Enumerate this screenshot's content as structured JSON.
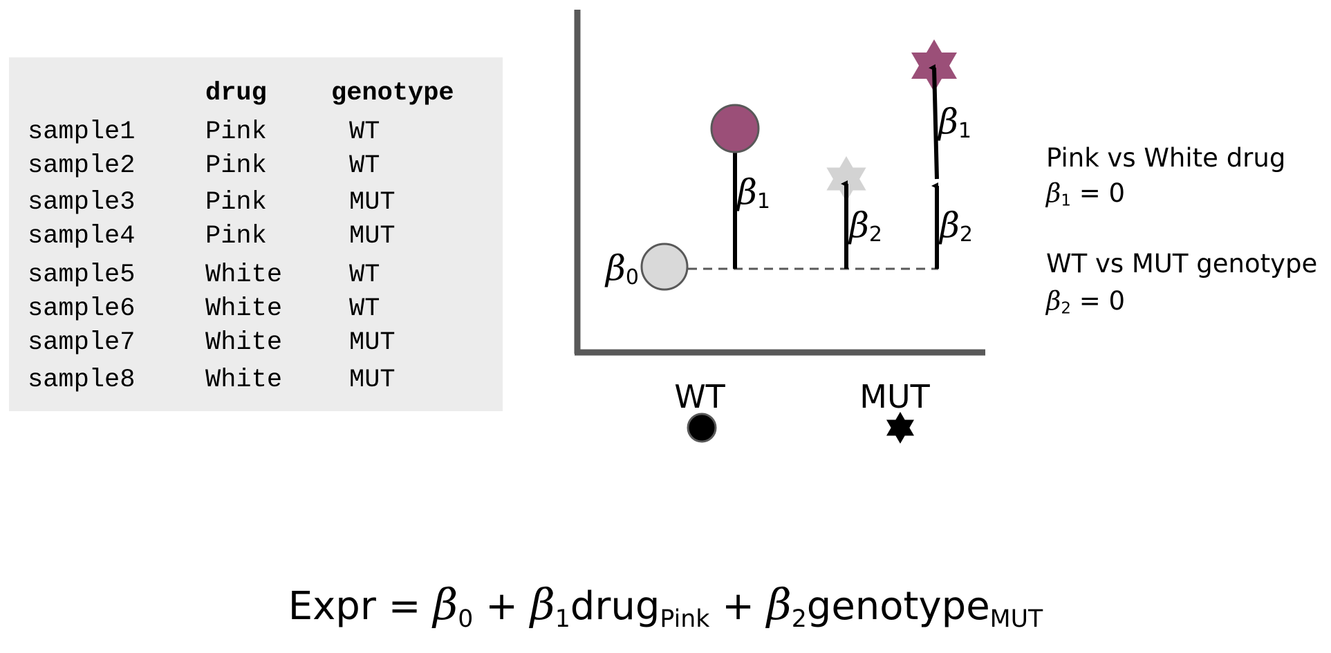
{
  "table": {
    "headers": {
      "drug": "drug",
      "genotype": "genotype"
    },
    "rows": [
      {
        "sample": "sample1",
        "drug": "Pink",
        "genotype": "WT"
      },
      {
        "sample": "sample2",
        "drug": "Pink",
        "genotype": "WT"
      },
      {
        "sample": "sample3",
        "drug": "Pink",
        "genotype": "MUT"
      },
      {
        "sample": "sample4",
        "drug": "Pink",
        "genotype": "MUT"
      },
      {
        "sample": "sample5",
        "drug": "White",
        "genotype": "WT"
      },
      {
        "sample": "sample6",
        "drug": "White",
        "genotype": "WT"
      },
      {
        "sample": "sample7",
        "drug": "White",
        "genotype": "MUT"
      },
      {
        "sample": "sample8",
        "drug": "White",
        "genotype": "MUT"
      }
    ]
  },
  "diagram": {
    "x_labels": {
      "wt": "WT",
      "mut": "MUT"
    },
    "beta_symbol": "β",
    "subscripts": {
      "b0": "0",
      "b1": "1",
      "b2": "2"
    },
    "colors": {
      "pink": "#9b4f78",
      "white_circle": "#d9d9d9",
      "white_star": "#d3d3d3",
      "axis": "#595959",
      "dashed": "#595959"
    }
  },
  "notes": {
    "drug_title": "Pink vs White drug",
    "drug_eq_value": " = 0",
    "genotype_title": "WT vs MUT genotype",
    "genotype_eq_value": " = 0"
  },
  "formula": {
    "lhs": "Expr = ",
    "plus": " + ",
    "drug_term": "drug",
    "drug_sub": "Pink",
    "genotype_term": "genotype",
    "genotype_sub": "MUT"
  }
}
